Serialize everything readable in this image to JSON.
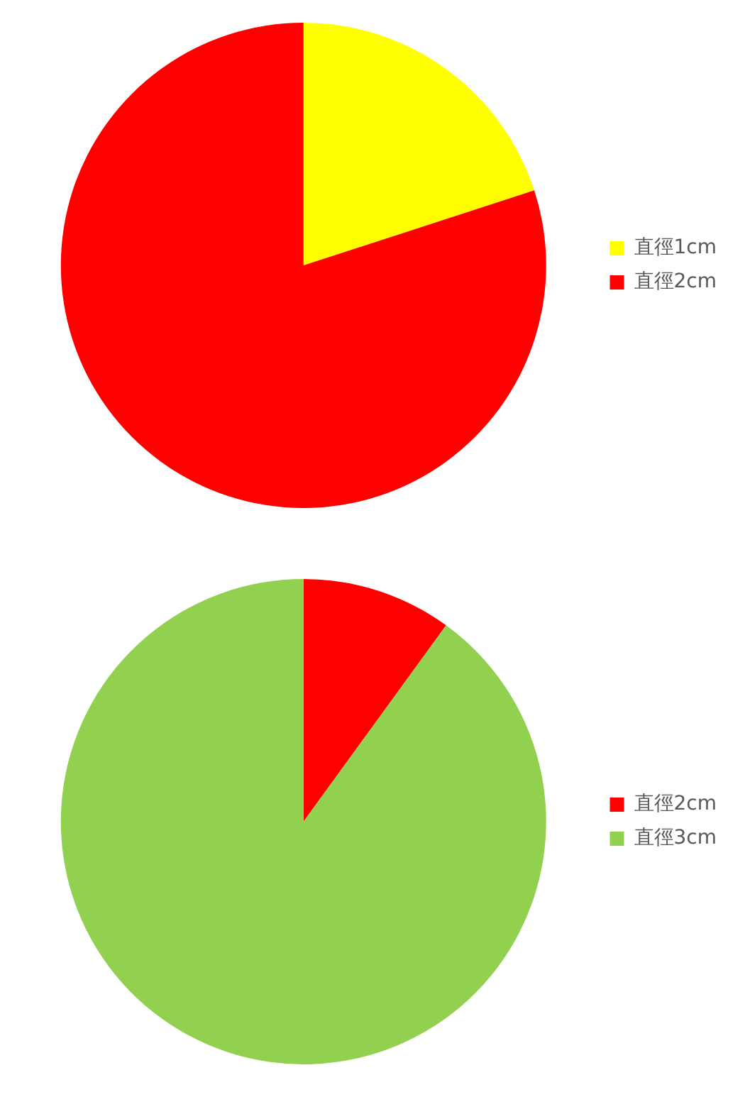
{
  "chart_data": [
    {
      "type": "pie",
      "categories": [
        "直徑1cm",
        "直徑2cm"
      ],
      "values": [
        20,
        80
      ],
      "colors": [
        "#ffff00",
        "#ff0000"
      ],
      "legend": "right"
    },
    {
      "type": "pie",
      "categories": [
        "直徑2cm",
        "直徑3cm"
      ],
      "values": [
        10,
        90
      ],
      "colors": [
        "#ff0000",
        "#92d050"
      ],
      "legend": "right"
    }
  ]
}
